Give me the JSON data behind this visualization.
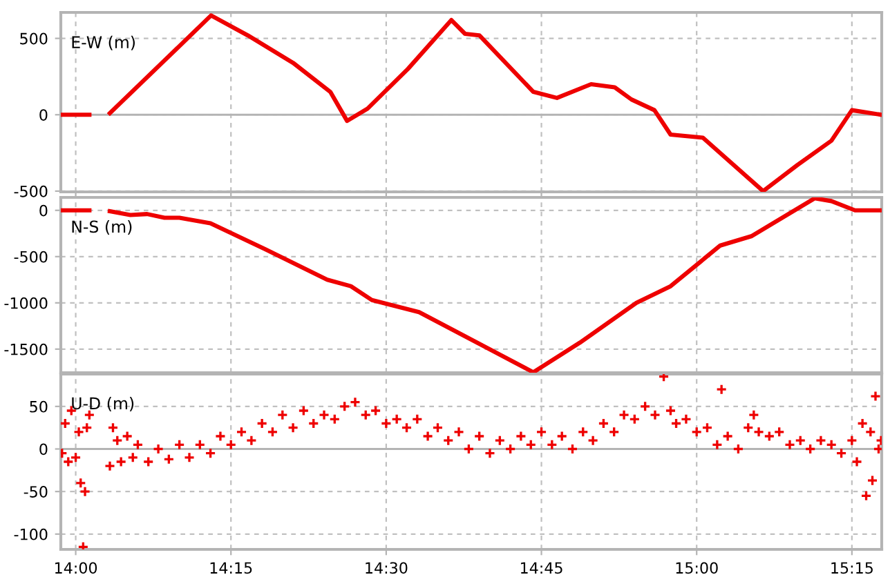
{
  "chart_data": [
    {
      "type": "line",
      "title": "E-W (m)",
      "xlim": [
        13.976,
        15.298
      ],
      "xticks": [
        {
          "value": 14,
          "label": null
        },
        {
          "value": 14.25,
          "label": null
        },
        {
          "value": 14.5,
          "label": null
        },
        {
          "value": 14.75,
          "label": null
        },
        {
          "value": 15,
          "label": null
        },
        {
          "value": 15.25,
          "label": null
        }
      ],
      "ylim": [
        -505,
        670
      ],
      "yticks": [
        -500,
        0,
        500
      ],
      "tick_labels": "y",
      "grid": true,
      "ref_lines": [
        {
          "axis": "y",
          "value": 0,
          "color": "#b4b4b4",
          "line_style": "solid"
        }
      ],
      "series": [
        {
          "color": "#ee0000",
          "x": [
            13.978,
            14.022,
            14.04,
            14.055,
            14.218,
            14.277,
            14.35,
            14.41,
            14.437,
            14.47,
            14.535,
            14.605,
            14.627,
            14.65,
            14.737,
            14.775,
            14.83,
            14.868,
            14.895,
            14.932,
            14.958,
            15.01,
            15.107,
            15.162,
            15.217,
            15.25,
            15.297
          ],
          "values": [
            0,
            0,
            null,
            10,
            650,
            520,
            340,
            150,
            -40,
            40,
            300,
            620,
            530,
            520,
            150,
            110,
            200,
            180,
            100,
            30,
            -130,
            -150,
            -500,
            -330,
            -170,
            30,
            0
          ]
        }
      ]
    },
    {
      "type": "line",
      "title": "N-S (m)",
      "xlim": [
        13.976,
        15.298
      ],
      "xticks": [
        {
          "value": 14,
          "label": null
        },
        {
          "value": 14.25,
          "label": null
        },
        {
          "value": 14.5,
          "label": null
        },
        {
          "value": 14.75,
          "label": null
        },
        {
          "value": 15,
          "label": null
        },
        {
          "value": 15.25,
          "label": null
        }
      ],
      "ylim": [
        -1755,
        140
      ],
      "yticks": [
        -1500,
        -1000,
        -500,
        0
      ],
      "tick_labels": "y",
      "grid": true,
      "series": [
        {
          "color": "#ee0000",
          "x": [
            13.978,
            14.022,
            14.04,
            14.055,
            14.088,
            14.115,
            14.143,
            14.167,
            14.217,
            14.305,
            14.405,
            14.443,
            14.477,
            14.553,
            14.618,
            14.737,
            14.812,
            14.903,
            14.958,
            15.038,
            15.088,
            15.19,
            15.217,
            15.255,
            15.297
          ],
          "values": [
            0,
            0,
            null,
            -10,
            -50,
            -40,
            -80,
            -80,
            -140,
            -420,
            -750,
            -820,
            -970,
            -1100,
            -1330,
            -1750,
            -1430,
            -1000,
            -820,
            -380,
            -280,
            130,
            100,
            0,
            0
          ]
        }
      ]
    },
    {
      "type": "scatter",
      "title": "U-D (m)",
      "marker": "cross",
      "xlim": [
        13.976,
        15.298
      ],
      "xticks": [
        {
          "value": 14,
          "label": "14:00"
        },
        {
          "value": 14.25,
          "label": "14:15"
        },
        {
          "value": 14.5,
          "label": "14:30"
        },
        {
          "value": 14.75,
          "label": "14:45"
        },
        {
          "value": 15,
          "label": "15:00"
        },
        {
          "value": 15.25,
          "label": "15:15"
        }
      ],
      "ylim": [
        -118,
        88
      ],
      "yticks": [
        -100,
        -50,
        0,
        50
      ],
      "grid": true,
      "ref_lines": [
        {
          "axis": "y",
          "value": 0,
          "color": "#b4b4b4",
          "line_style": "solid"
        }
      ],
      "series": [
        {
          "color": "#ee0000",
          "x": [
            13.978,
            13.983,
            13.988,
            13.993,
            14.0,
            14.005,
            14.008,
            14.012,
            14.015,
            14.018,
            14.022,
            14.055,
            14.06,
            14.067,
            14.073,
            14.083,
            14.092,
            14.1,
            14.117,
            14.133,
            14.15,
            14.167,
            14.183,
            14.2,
            14.217,
            14.233,
            14.25,
            14.267,
            14.283,
            14.3,
            14.317,
            14.333,
            14.35,
            14.367,
            14.383,
            14.4,
            14.417,
            14.433,
            14.45,
            14.467,
            14.483,
            14.5,
            14.517,
            14.533,
            14.55,
            14.567,
            14.583,
            14.6,
            14.617,
            14.633,
            14.65,
            14.667,
            14.683,
            14.7,
            14.717,
            14.733,
            14.75,
            14.767,
            14.783,
            14.8,
            14.817,
            14.833,
            14.85,
            14.867,
            14.883,
            14.9,
            14.917,
            14.933,
            14.947,
            14.958,
            14.967,
            14.983,
            15.0,
            15.017,
            15.033,
            15.04,
            15.05,
            15.067,
            15.083,
            15.092,
            15.1,
            15.117,
            15.133,
            15.15,
            15.167,
            15.183,
            15.2,
            15.217,
            15.233,
            15.25,
            15.258,
            15.267,
            15.273,
            15.28,
            15.283,
            15.288,
            15.293,
            15.297
          ],
          "values": [
            -5,
            30,
            -15,
            45,
            -10,
            20,
            -40,
            -115,
            -50,
            25,
            40,
            -20,
            25,
            10,
            -15,
            15,
            -10,
            5,
            -15,
            0,
            -12,
            5,
            -10,
            5,
            -5,
            15,
            5,
            20,
            10,
            30,
            20,
            40,
            25,
            45,
            30,
            40,
            35,
            50,
            55,
            40,
            45,
            30,
            35,
            25,
            35,
            15,
            25,
            10,
            20,
            0,
            15,
            -5,
            10,
            0,
            15,
            5,
            20,
            5,
            15,
            0,
            20,
            10,
            30,
            20,
            40,
            35,
            50,
            40,
            85,
            45,
            30,
            35,
            20,
            25,
            5,
            70,
            15,
            0,
            25,
            40,
            20,
            15,
            20,
            5,
            10,
            0,
            10,
            5,
            -5,
            10,
            -15,
            30,
            -55,
            20,
            -37,
            62,
            0,
            10
          ]
        }
      ]
    }
  ]
}
